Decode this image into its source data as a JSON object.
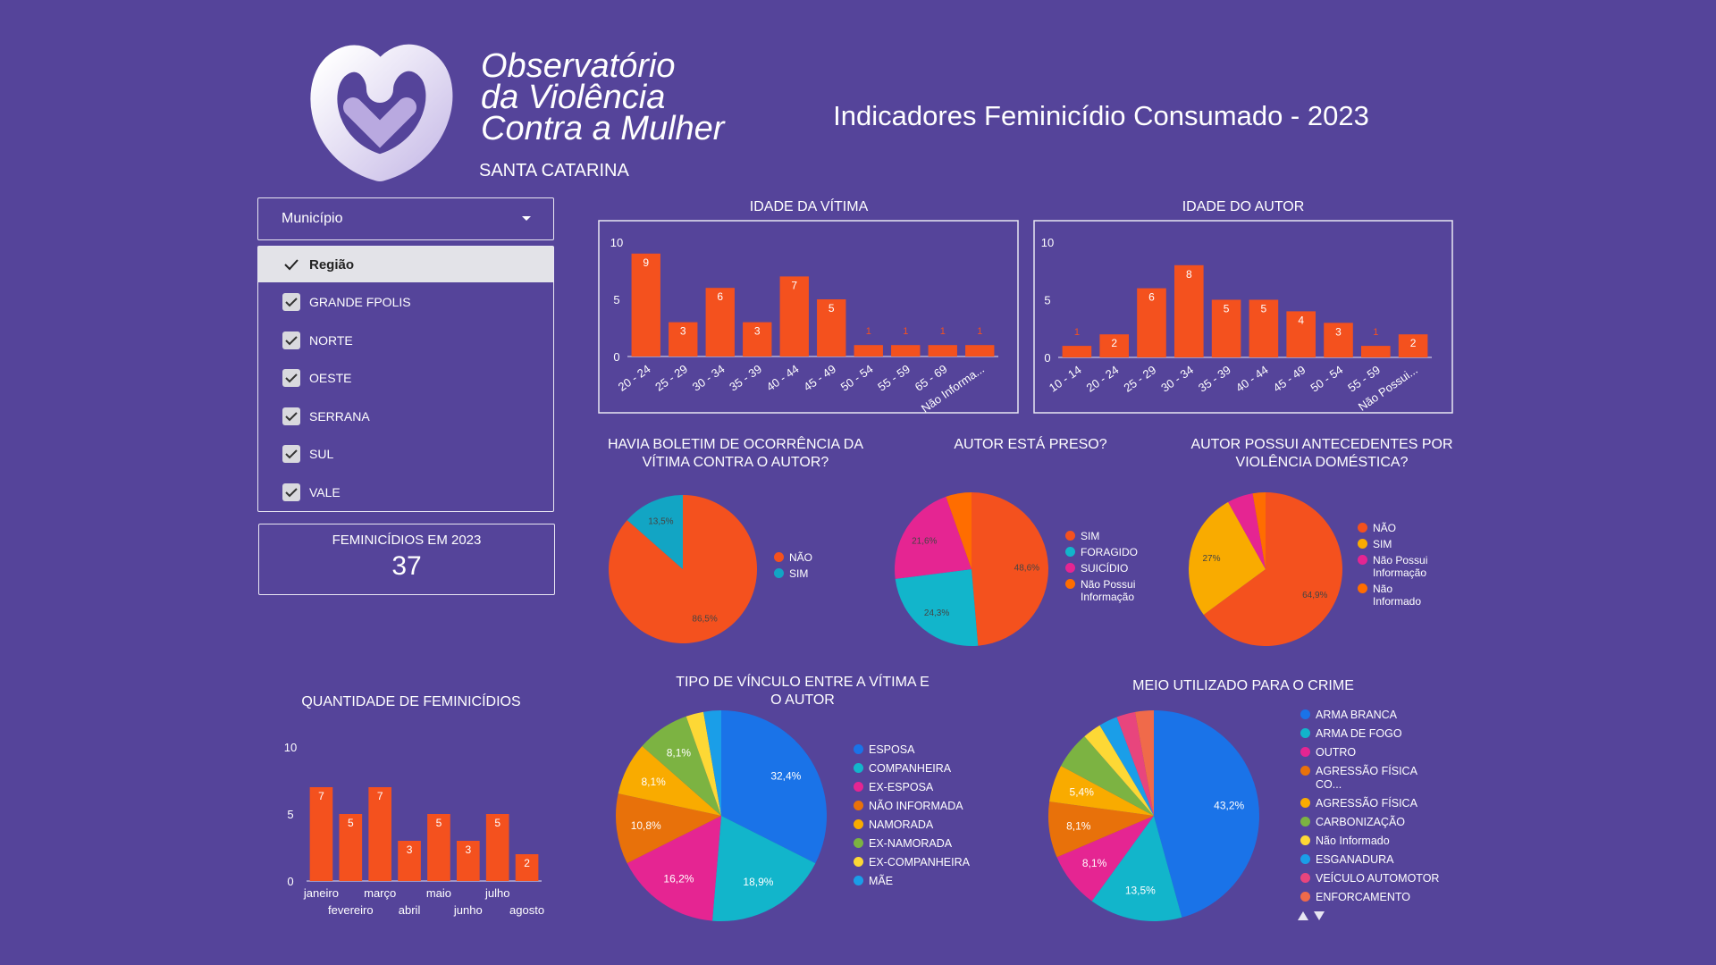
{
  "header": {
    "logo_lines": [
      "Observatório",
      "da Violência",
      "Contra a Mulher"
    ],
    "logo_subtitle": "SANTA CATARINA",
    "title": "Indicadores Feminicídio Consumado - 2023"
  },
  "filter": {
    "dropdown": "Município",
    "header": "Região",
    "options": [
      "GRANDE FPOLIS",
      "NORTE",
      "OESTE",
      "SERRANA",
      "SUL",
      "VALE"
    ]
  },
  "kpi": {
    "label": "FEMINICÍDIOS EM 2023",
    "value": 37
  },
  "chart_data": [
    {
      "type": "bar",
      "title": "IDADE DA VÍTIMA",
      "categories": [
        "20 - 24",
        "25 - 29",
        "30 - 34",
        "35 - 39",
        "40 - 44",
        "45 - 49",
        "50 - 54",
        "55 - 59",
        "65 - 69",
        "Não Informa..."
      ],
      "values": [
        9,
        3,
        6,
        3,
        7,
        5,
        1,
        1,
        1,
        1
      ],
      "color": "#f4511e",
      "ylim": [
        0,
        10
      ],
      "yticks": [
        0,
        5,
        10
      ]
    },
    {
      "type": "bar",
      "title": "IDADE DO AUTOR",
      "categories": [
        "10 - 14",
        "20 - 24",
        "25 - 29",
        "30 - 34",
        "35 - 39",
        "40 - 44",
        "45 - 49",
        "50 - 54",
        "55 - 59",
        "Não Possui..."
      ],
      "values": [
        1,
        2,
        6,
        8,
        5,
        5,
        4,
        3,
        1,
        2
      ],
      "color": "#f4511e",
      "ylim": [
        0,
        10
      ],
      "yticks": [
        0,
        5,
        10
      ]
    },
    {
      "type": "pie",
      "title": "HAVIA BOLETIM DE OCORRÊNCIA DA VÍTIMA CONTRA O AUTOR?",
      "categories": [
        "NÃO",
        "SIM"
      ],
      "values": [
        86.5,
        13.5
      ],
      "value_labels": [
        "86,5%",
        "13,5%"
      ],
      "colors": [
        "#f4511e",
        "#12a5c4"
      ]
    },
    {
      "type": "pie",
      "title": "AUTOR ESTÁ PRESO?",
      "categories": [
        "SIM",
        "FORAGIDO",
        "SUICÍDIO",
        "Não Possui Informação"
      ],
      "values": [
        48.6,
        24.3,
        21.6,
        5.4
      ],
      "value_labels": [
        "48,6%",
        "24,3%",
        "21,6%",
        null
      ],
      "colors": [
        "#f4511e",
        "#12b5cb",
        "#e52592",
        "#ff6d00"
      ]
    },
    {
      "type": "pie",
      "title": "AUTOR POSSUI ANTECEDENTES POR VIOLÊNCIA DOMÉSTICA?",
      "categories": [
        "NÃO",
        "SIM",
        "Não Possui Informação",
        "Não Informado"
      ],
      "values": [
        64.9,
        27,
        5.4,
        2.7
      ],
      "value_labels": [
        "64,9%",
        "27%",
        null,
        null
      ],
      "colors": [
        "#f4511e",
        "#f9ab00",
        "#e52592",
        "#ff6d00"
      ]
    },
    {
      "type": "pie",
      "title": "TIPO DE VÍNCULO ENTRE A VÍTIMA E O AUTOR",
      "categories": [
        "ESPOSA",
        "COMPANHEIRA",
        "EX-ESPOSA",
        "NÃO INFORMADA",
        "NAMORADA",
        "EX-NAMORADA",
        "EX-COMPANHEIRA",
        "MÃE"
      ],
      "values": [
        32.4,
        18.9,
        16.2,
        10.8,
        8.1,
        8.1,
        2.7,
        2.7
      ],
      "value_labels": [
        "32,4%",
        "18,9%",
        "16,2%",
        "10,8%",
        "8,1%",
        "8,1%",
        null,
        null
      ],
      "colors": [
        "#1a73e8",
        "#12b5cb",
        "#e52592",
        "#e8710a",
        "#f9ab00",
        "#7cb342",
        "#fdd835",
        "#1a9ee8"
      ]
    },
    {
      "type": "pie",
      "title": "MEIO UTILIZADO PARA O CRIME",
      "categories": [
        "ARMA BRANCA",
        "ARMA DE FOGO",
        "OUTRO",
        "AGRESSÃO FÍSICA CO...",
        "AGRESSÃO FÍSICA",
        "CARBONIZAÇÃO",
        "Não Informado",
        "ESGANADURA",
        "VEÍCULO AUTOMOTOR",
        "ENFORCAMENTO"
      ],
      "values": [
        43.2,
        13.5,
        8.1,
        8.1,
        5.4,
        5.4,
        2.7,
        2.7,
        2.7,
        2.7
      ],
      "value_labels": [
        "43,2%",
        "13,5%",
        "8,1%",
        "8,1%",
        "5,4%",
        null,
        null,
        null,
        null,
        null
      ],
      "colors": [
        "#1a73e8",
        "#12b5cb",
        "#e52592",
        "#e8710a",
        "#f9ab00",
        "#7cb342",
        "#fdd835",
        "#1a9ee8",
        "#e8457d",
        "#f06a4a"
      ]
    },
    {
      "type": "bar",
      "title": "QUANTIDADE DE FEMINICÍDIOS",
      "categories": [
        "janeiro",
        "fevereiro",
        "março",
        "abril",
        "maio",
        "junho",
        "julho",
        "agosto"
      ],
      "values": [
        7,
        5,
        7,
        3,
        5,
        3,
        5,
        2
      ],
      "color": "#f4511e",
      "ylim": [
        0,
        10
      ],
      "yticks": [
        0,
        5,
        10
      ]
    }
  ]
}
